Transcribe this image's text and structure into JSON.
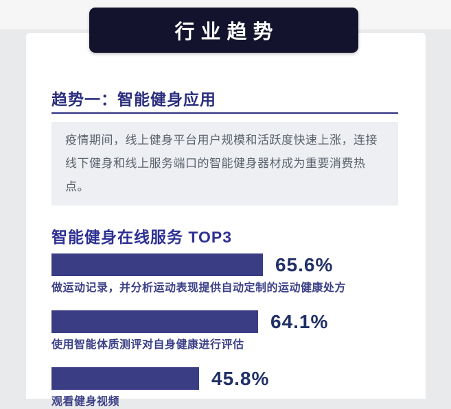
{
  "banner": {
    "title": "行业趋势"
  },
  "section": {
    "heading": "趋势一：智能健身应用",
    "description": "疫情期间，线上健身平台用户规模和活跃度快速上涨，连接线下健身和线上服务端口的智能健身器材成为重要消费热点。"
  },
  "chart_data": {
    "type": "bar",
    "orientation": "horizontal",
    "title": "智能健身在线服务 TOP3",
    "categories": [
      "做运动记录，并分析运动表现提供自动定制的运动健康处方",
      "使用智能体质测评对自身健康进行评估",
      "观看健身视频"
    ],
    "values": [
      65.6,
      64.1,
      45.8
    ],
    "value_labels": [
      "65.6%",
      "64.1%",
      "45.8%"
    ],
    "unit": "%",
    "xlim": [
      0,
      100
    ],
    "grid": false,
    "legend": "none",
    "value_label_position": "right-of-bar"
  },
  "colors": {
    "page_background": "#e9eaec",
    "card_background": "#ffffff",
    "banner_background": "#13132d",
    "banner_text": "#ffffff",
    "accent": "#2b2e7e",
    "chart_title": "#2e3192",
    "bar_fill": "#3a3d84",
    "value_text": "#203067",
    "category_text": "#3c4087",
    "description_text": "#5a616b",
    "description_background": "#edeff2"
  }
}
